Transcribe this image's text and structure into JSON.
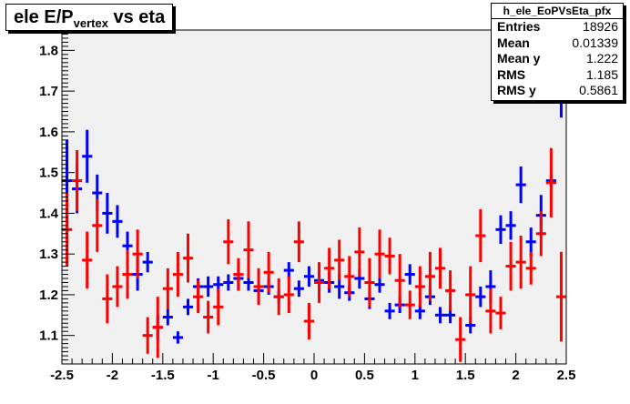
{
  "title": {
    "main": "ele E/P",
    "sub": "vertex",
    "rest": " vs eta"
  },
  "stats": {
    "name": "h_ele_EoPVsEta_pfx",
    "rows": [
      {
        "label": "Entries",
        "value": "18926"
      },
      {
        "label": "Mean",
        "value": "0.01339"
      },
      {
        "label": "Mean y",
        "value": "1.222"
      },
      {
        "label": "RMS",
        "value": "1.185"
      },
      {
        "label": "RMS y",
        "value": "0.5861"
      }
    ]
  },
  "chart_data": {
    "type": "scatter",
    "title": "ele E/Pvertex vs eta",
    "xlim": [
      -2.5,
      2.5
    ],
    "ylim": [
      1.03,
      1.85
    ],
    "xticks": [
      -2.5,
      -2,
      -1.5,
      -1,
      -0.5,
      0,
      0.5,
      1,
      1.5,
      2,
      2.5
    ],
    "xtick_labels": [
      "-2.5",
      "-2",
      "-1.5",
      "-1",
      "-0.5",
      "0",
      "0.5",
      "1",
      "1.5",
      "2",
      "2.5"
    ],
    "yticks": [
      1.1,
      1.2,
      1.3,
      1.4,
      1.5,
      1.6,
      1.7,
      1.8
    ],
    "ytick_labels": [
      "1.1",
      "1.2",
      "1.3",
      "1.4",
      "1.5",
      "1.6",
      "1.7",
      "1.8"
    ],
    "grid": false,
    "plot_background": "#f0f0f0",
    "bin_width": 0.1,
    "series": [
      {
        "color": "#0000ff",
        "points": [
          {
            "x": -2.45,
            "y": 1.48,
            "err": 0.1
          },
          {
            "x": -2.35,
            "y": 1.46,
            "err": 0.06
          },
          {
            "x": -2.25,
            "y": 1.54,
            "err": 0.065
          },
          {
            "x": -2.15,
            "y": 1.45,
            "err": 0.045
          },
          {
            "x": -2.05,
            "y": 1.4,
            "err": 0.05
          },
          {
            "x": -1.95,
            "y": 1.38,
            "err": 0.04
          },
          {
            "x": -1.85,
            "y": 1.32,
            "err": 0.035
          },
          {
            "x": -1.75,
            "y": 1.25,
            "err": 0.04
          },
          {
            "x": -1.65,
            "y": 1.28,
            "err": 0.025
          },
          {
            "x": -1.55,
            "y": 1.12,
            "err": 0.03
          },
          {
            "x": -1.45,
            "y": 1.145,
            "err": 0.02
          },
          {
            "x": -1.35,
            "y": 1.095,
            "err": 0.015
          },
          {
            "x": -1.25,
            "y": 1.17,
            "err": 0.02
          },
          {
            "x": -1.15,
            "y": 1.22,
            "err": 0.02
          },
          {
            "x": -1.05,
            "y": 1.22,
            "err": 0.025
          },
          {
            "x": -0.95,
            "y": 1.225,
            "err": 0.02
          },
          {
            "x": -0.85,
            "y": 1.23,
            "err": 0.02
          },
          {
            "x": -0.75,
            "y": 1.24,
            "err": 0.03
          },
          {
            "x": -0.65,
            "y": 1.23,
            "err": 0.02
          },
          {
            "x": -0.55,
            "y": 1.21,
            "err": 0.02
          },
          {
            "x": -0.45,
            "y": 1.22,
            "err": 0.02
          },
          {
            "x": -0.35,
            "y": 1.195,
            "err": 0.015
          },
          {
            "x": -0.25,
            "y": 1.26,
            "err": 0.02
          },
          {
            "x": -0.15,
            "y": 1.215,
            "err": 0.02
          },
          {
            "x": -0.05,
            "y": 1.245,
            "err": 0.025
          },
          {
            "x": 0.05,
            "y": 1.235,
            "err": 0.025
          },
          {
            "x": 0.15,
            "y": 1.23,
            "err": 0.025
          },
          {
            "x": 0.25,
            "y": 1.22,
            "err": 0.03
          },
          {
            "x": 0.35,
            "y": 1.205,
            "err": 0.02
          },
          {
            "x": 0.45,
            "y": 1.24,
            "err": 0.025
          },
          {
            "x": 0.55,
            "y": 1.19,
            "err": 0.025
          },
          {
            "x": 0.65,
            "y": 1.225,
            "err": 0.02
          },
          {
            "x": 0.75,
            "y": 1.16,
            "err": 0.02
          },
          {
            "x": 0.85,
            "y": 1.175,
            "err": 0.02
          },
          {
            "x": 0.95,
            "y": 1.25,
            "err": 0.025
          },
          {
            "x": 1.05,
            "y": 1.16,
            "err": 0.02
          },
          {
            "x": 1.15,
            "y": 1.195,
            "err": 0.02
          },
          {
            "x": 1.25,
            "y": 1.15,
            "err": 0.02
          },
          {
            "x": 1.35,
            "y": 1.15,
            "err": 0.02
          },
          {
            "x": 1.55,
            "y": 1.125,
            "err": 0.02
          },
          {
            "x": 1.65,
            "y": 1.195,
            "err": 0.025
          },
          {
            "x": 1.75,
            "y": 1.22,
            "err": 0.04
          },
          {
            "x": 1.85,
            "y": 1.36,
            "err": 0.035
          },
          {
            "x": 1.95,
            "y": 1.37,
            "err": 0.035
          },
          {
            "x": 2.05,
            "y": 1.47,
            "err": 0.045
          },
          {
            "x": 2.15,
            "y": 1.33,
            "err": 0.035
          },
          {
            "x": 2.25,
            "y": 1.395,
            "err": 0.05
          },
          {
            "x": 2.35,
            "y": 1.48,
            "err": 0.015
          },
          {
            "x": 2.45,
            "y": 1.7,
            "err": 0.065
          }
        ]
      },
      {
        "color": "#ff0000",
        "points": [
          {
            "x": -2.45,
            "y": 1.36,
            "err": 0.09
          },
          {
            "x": -2.35,
            "y": 1.48,
            "err": 0.075
          },
          {
            "x": -2.25,
            "y": 1.285,
            "err": 0.07
          },
          {
            "x": -2.15,
            "y": 1.37,
            "err": 0.065
          },
          {
            "x": -2.05,
            "y": 1.19,
            "err": 0.06
          },
          {
            "x": -1.95,
            "y": 1.22,
            "err": 0.05
          },
          {
            "x": -1.85,
            "y": 1.25,
            "err": 0.06
          },
          {
            "x": -1.75,
            "y": 1.3,
            "err": 0.06
          },
          {
            "x": -1.65,
            "y": 1.1,
            "err": 0.045
          },
          {
            "x": -1.55,
            "y": 1.12,
            "err": 0.075
          },
          {
            "x": -1.45,
            "y": 1.215,
            "err": 0.05
          },
          {
            "x": -1.35,
            "y": 1.25,
            "err": 0.055
          },
          {
            "x": -1.25,
            "y": 1.29,
            "err": 0.06
          },
          {
            "x": -1.15,
            "y": 1.195,
            "err": 0.04
          },
          {
            "x": -1.05,
            "y": 1.145,
            "err": 0.04
          },
          {
            "x": -0.95,
            "y": 1.17,
            "err": 0.045
          },
          {
            "x": -0.85,
            "y": 1.33,
            "err": 0.055
          },
          {
            "x": -0.75,
            "y": 1.25,
            "err": 0.04
          },
          {
            "x": -0.65,
            "y": 1.31,
            "err": 0.07
          },
          {
            "x": -0.55,
            "y": 1.22,
            "err": 0.045
          },
          {
            "x": -0.45,
            "y": 1.255,
            "err": 0.05
          },
          {
            "x": -0.35,
            "y": 1.195,
            "err": 0.045
          },
          {
            "x": -0.25,
            "y": 1.2,
            "err": 0.045
          },
          {
            "x": -0.15,
            "y": 1.33,
            "err": 0.05
          },
          {
            "x": -0.05,
            "y": 1.135,
            "err": 0.045
          },
          {
            "x": 0.05,
            "y": 1.23,
            "err": 0.05
          },
          {
            "x": 0.15,
            "y": 1.265,
            "err": 0.05
          },
          {
            "x": 0.25,
            "y": 1.285,
            "err": 0.05
          },
          {
            "x": 0.35,
            "y": 1.245,
            "err": 0.05
          },
          {
            "x": 0.45,
            "y": 1.305,
            "err": 0.06
          },
          {
            "x": 0.55,
            "y": 1.23,
            "err": 0.06
          },
          {
            "x": 0.65,
            "y": 1.3,
            "err": 0.06
          },
          {
            "x": 0.75,
            "y": 1.295,
            "err": 0.045
          },
          {
            "x": 0.85,
            "y": 1.235,
            "err": 0.065
          },
          {
            "x": 0.95,
            "y": 1.175,
            "err": 0.035
          },
          {
            "x": 1.05,
            "y": 1.22,
            "err": 0.05
          },
          {
            "x": 1.15,
            "y": 1.245,
            "err": 0.06
          },
          {
            "x": 1.25,
            "y": 1.265,
            "err": 0.05
          },
          {
            "x": 1.35,
            "y": 1.21,
            "err": 0.05
          },
          {
            "x": 1.45,
            "y": 1.09,
            "err": 0.055
          },
          {
            "x": 1.55,
            "y": 1.2,
            "err": 0.07
          },
          {
            "x": 1.65,
            "y": 1.345,
            "err": 0.065
          },
          {
            "x": 1.75,
            "y": 1.16,
            "err": 0.055
          },
          {
            "x": 1.85,
            "y": 1.155,
            "err": 0.04
          },
          {
            "x": 1.95,
            "y": 1.27,
            "err": 0.06
          },
          {
            "x": 2.05,
            "y": 1.28,
            "err": 0.065
          },
          {
            "x": 2.15,
            "y": 1.265,
            "err": 0.04
          },
          {
            "x": 2.25,
            "y": 1.35,
            "err": 0.055
          },
          {
            "x": 2.35,
            "y": 1.475,
            "err": 0.085
          },
          {
            "x": 2.45,
            "y": 1.195,
            "err": 0.11
          }
        ]
      }
    ]
  }
}
